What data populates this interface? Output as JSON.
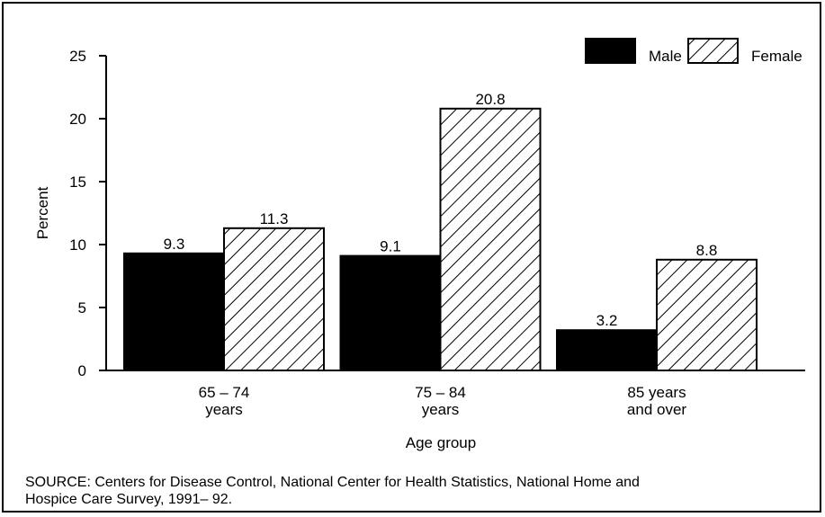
{
  "chart_data": {
    "type": "bar",
    "categories": [
      [
        "65 – 74",
        "years"
      ],
      [
        "75 – 84",
        "years"
      ],
      [
        "85 years",
        "and over"
      ]
    ],
    "series": [
      {
        "name": "Male",
        "color": "#000000",
        "values": [
          9.3,
          9.1,
          3.2
        ]
      },
      {
        "name": "Female",
        "color": "#ffffff",
        "pattern": "diagonal-hatch",
        "values": [
          11.3,
          20.8,
          8.8
        ]
      }
    ],
    "ylim": [
      0,
      25
    ],
    "yticks": [
      0,
      5,
      10,
      15,
      20,
      25
    ],
    "ylabel": "Percent",
    "xlabel": "Age group",
    "legend": "top-right",
    "source": [
      "SOURCE: Centers for Disease Control, National Center for Health Statistics, National Home and",
      "Hospice Care Survey, 1991– 92."
    ]
  }
}
